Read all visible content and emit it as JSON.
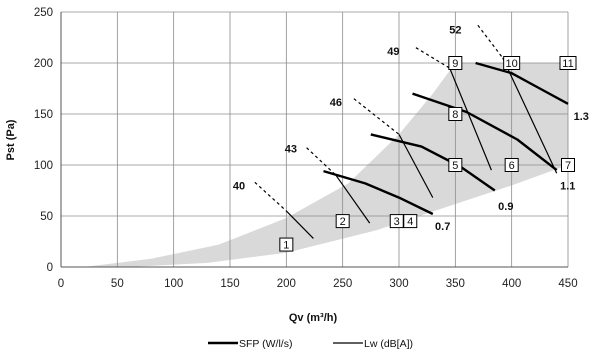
{
  "chart_data": {
    "type": "line",
    "xlabel": "Qv (m³/h)",
    "ylabel": "Pst (Pa)",
    "xlim": [
      0,
      450
    ],
    "ylim": [
      0,
      250
    ],
    "xticks": [
      0,
      50,
      100,
      150,
      200,
      250,
      300,
      350,
      400,
      450
    ],
    "yticks": [
      0,
      50,
      100,
      150,
      200,
      250
    ],
    "grid": true,
    "envelope": {
      "upper": [
        [
          20,
          0
        ],
        [
          80,
          8
        ],
        [
          140,
          22
        ],
        [
          200,
          48
        ],
        [
          255,
          82
        ],
        [
          300,
          130
        ],
        [
          330,
          170
        ],
        [
          350,
          200
        ],
        [
          450,
          200
        ]
      ],
      "lower": [
        [
          450,
          100
        ],
        [
          400,
          80
        ],
        [
          340,
          58
        ],
        [
          280,
          36
        ],
        [
          200,
          14
        ],
        [
          130,
          4
        ],
        [
          60,
          0
        ]
      ]
    },
    "lw_curves": [
      {
        "label": "40",
        "solid": [
          [
            200,
            55
          ],
          [
            224,
            28
          ]
        ],
        "dashed": [
          [
            172,
            83
          ],
          [
            200,
            55
          ]
        ],
        "label_at": [
          158,
          80
        ]
      },
      {
        "label": "43",
        "solid": [
          [
            244,
            90
          ],
          [
            274,
            43
          ]
        ],
        "dashed": [
          [
            218,
            117
          ],
          [
            244,
            90
          ]
        ],
        "label_at": [
          204,
          116
        ]
      },
      {
        "label": "46",
        "solid": [
          [
            300,
            130
          ],
          [
            330,
            68
          ]
        ],
        "dashed": [
          [
            260,
            165
          ],
          [
            300,
            130
          ]
        ],
        "label_at": [
          244,
          162
        ]
      },
      {
        "label": "49",
        "solid": [
          [
            345,
            195
          ],
          [
            382,
            95
          ]
        ],
        "dashed": [
          [
            315,
            215
          ],
          [
            345,
            195
          ]
        ],
        "label_at": [
          295,
          212
        ]
      },
      {
        "label": "52",
        "solid": [
          [
            392,
            205
          ],
          [
            440,
            92
          ]
        ],
        "dashed": [
          [
            370,
            237
          ],
          [
            392,
            205
          ]
        ],
        "label_at": [
          350,
          233
        ]
      }
    ],
    "sfp_curves": [
      {
        "label": "0.7",
        "points": [
          [
            233,
            94
          ],
          [
            270,
            82
          ],
          [
            300,
            68
          ],
          [
            330,
            52
          ]
        ],
        "label_at": [
          332,
          40
        ]
      },
      {
        "label": "0.9",
        "points": [
          [
            275,
            130
          ],
          [
            320,
            118
          ],
          [
            355,
            98
          ],
          [
            385,
            75
          ]
        ],
        "label_at": [
          388,
          60
        ]
      },
      {
        "label": "1.1",
        "points": [
          [
            312,
            170
          ],
          [
            360,
            152
          ],
          [
            405,
            125
          ],
          [
            440,
            95
          ]
        ],
        "label_at": [
          443,
          80
        ]
      },
      {
        "label": "1.3",
        "points": [
          [
            368,
            200
          ],
          [
            400,
            190
          ],
          [
            425,
            175
          ],
          [
            450,
            160
          ]
        ],
        "label_at": [
          455,
          148
        ]
      }
    ],
    "points": [
      {
        "label": "1",
        "x": 200,
        "y": 22
      },
      {
        "label": "2",
        "x": 250,
        "y": 45
      },
      {
        "label": "3",
        "x": 298,
        "y": 45
      },
      {
        "label": "4",
        "x": 310,
        "y": 45
      },
      {
        "label": "5",
        "x": 350,
        "y": 100
      },
      {
        "label": "6",
        "x": 400,
        "y": 100
      },
      {
        "label": "7",
        "x": 450,
        "y": 100
      },
      {
        "label": "8",
        "x": 350,
        "y": 150
      },
      {
        "label": "9",
        "x": 350,
        "y": 200
      },
      {
        "label": "10",
        "x": 400,
        "y": 200
      },
      {
        "label": "11",
        "x": 450,
        "y": 200
      }
    ],
    "legend": [
      {
        "name": "SFP (W/l/s)",
        "style": "thick"
      },
      {
        "name": "Lw (dB[A])",
        "style": "thin"
      }
    ],
    "legend_position": "bottom",
    "colors": {
      "envelope": "#d9d9d9",
      "grid": "#8c8c8c",
      "line": "#000000"
    }
  }
}
